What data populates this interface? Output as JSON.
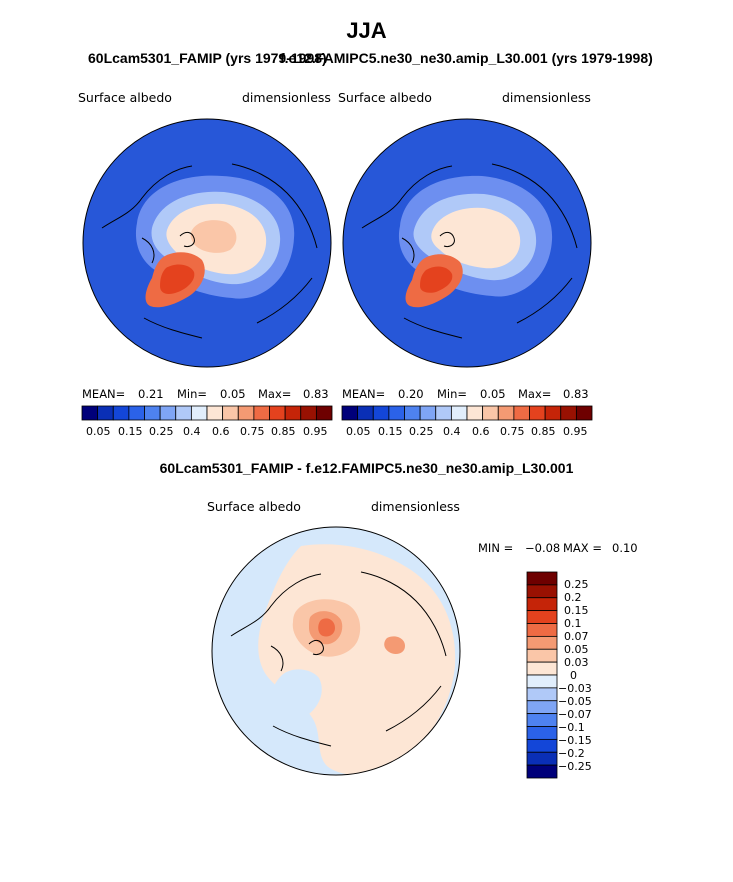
{
  "figure": {
    "main_title": "JJA"
  },
  "colors": {
    "ocean": "#2757d8",
    "land": "#3a68e0",
    "margin": "#6d8ff0",
    "diff_bg": "#d5e8fb"
  },
  "chart_data": [
    {
      "type": "heatmap",
      "title": "60Lcam5301_FAMIP (yrs 1979-1998)",
      "left_label": "Surface  albedo",
      "right_label": "dimensionless",
      "stats": {
        "mean_label": "MEAN=",
        "mean": "0.21",
        "min_label": "Min=",
        "min": "0.05",
        "max_label": "Max=",
        "max": "0.83"
      },
      "colorbar": {
        "colors": [
          "#00007a",
          "#0a2fb6",
          "#1346d8",
          "#2b62e8",
          "#4e82f0",
          "#7fa5f5",
          "#b0c9f8",
          "#e1eefc",
          "#fde6d5",
          "#fac6a8",
          "#f49a73",
          "#ee6b44",
          "#e4421e",
          "#c52408",
          "#991102",
          "#6e0000"
        ],
        "tick_labels": [
          "0.05",
          "0.15",
          "0.25",
          "0.4",
          "0.6",
          "0.75",
          "0.85",
          "0.95"
        ]
      }
    },
    {
      "type": "heatmap",
      "title": "f.e12.FAMIPC5.ne30_ne30.amip_L30.001 (yrs 1979-1998)",
      "left_label": "Surface  albedo",
      "right_label": "dimensionless",
      "stats": {
        "mean_label": "MEAN=",
        "mean": "0.20",
        "min_label": "Min=",
        "min": "0.05",
        "max_label": "Max=",
        "max": "0.83"
      },
      "colorbar": {
        "colors": [
          "#00007a",
          "#0a2fb6",
          "#1346d8",
          "#2b62e8",
          "#4e82f0",
          "#7fa5f5",
          "#b0c9f8",
          "#e1eefc",
          "#fde6d5",
          "#fac6a8",
          "#f49a73",
          "#ee6b44",
          "#e4421e",
          "#c52408",
          "#991102",
          "#6e0000"
        ],
        "tick_labels": [
          "0.05",
          "0.15",
          "0.25",
          "0.4",
          "0.6",
          "0.75",
          "0.85",
          "0.95"
        ]
      }
    },
    {
      "type": "heatmap",
      "title": "60Lcam5301_FAMIP - f.e12.FAMIPC5.ne30_ne30.amip_L30.001",
      "left_label": "Surface  albedo",
      "right_label": "dimensionless",
      "stats": {
        "min_label": "MIN =",
        "min": "−0.08",
        "max_label": "MAX =",
        "max": "0.10"
      },
      "colorbar": {
        "colors": [
          "#00007a",
          "#0a2fb6",
          "#1346d8",
          "#2b62e8",
          "#4e82f0",
          "#7fa5f5",
          "#b0c9f8",
          "#e1eefc",
          "#fde6d5",
          "#fac6a8",
          "#f49a73",
          "#ee6b44",
          "#e4421e",
          "#c52408",
          "#991102",
          "#6e0000"
        ],
        "tick_labels": [
          "0.25",
          "0.2",
          "0.15",
          "0.1",
          "0.07",
          "0.05",
          "0.03",
          "0",
          "−0.03",
          "−0.05",
          "−0.07",
          "−0.1",
          "−0.15",
          "−0.2",
          "−0.25"
        ]
      }
    }
  ]
}
